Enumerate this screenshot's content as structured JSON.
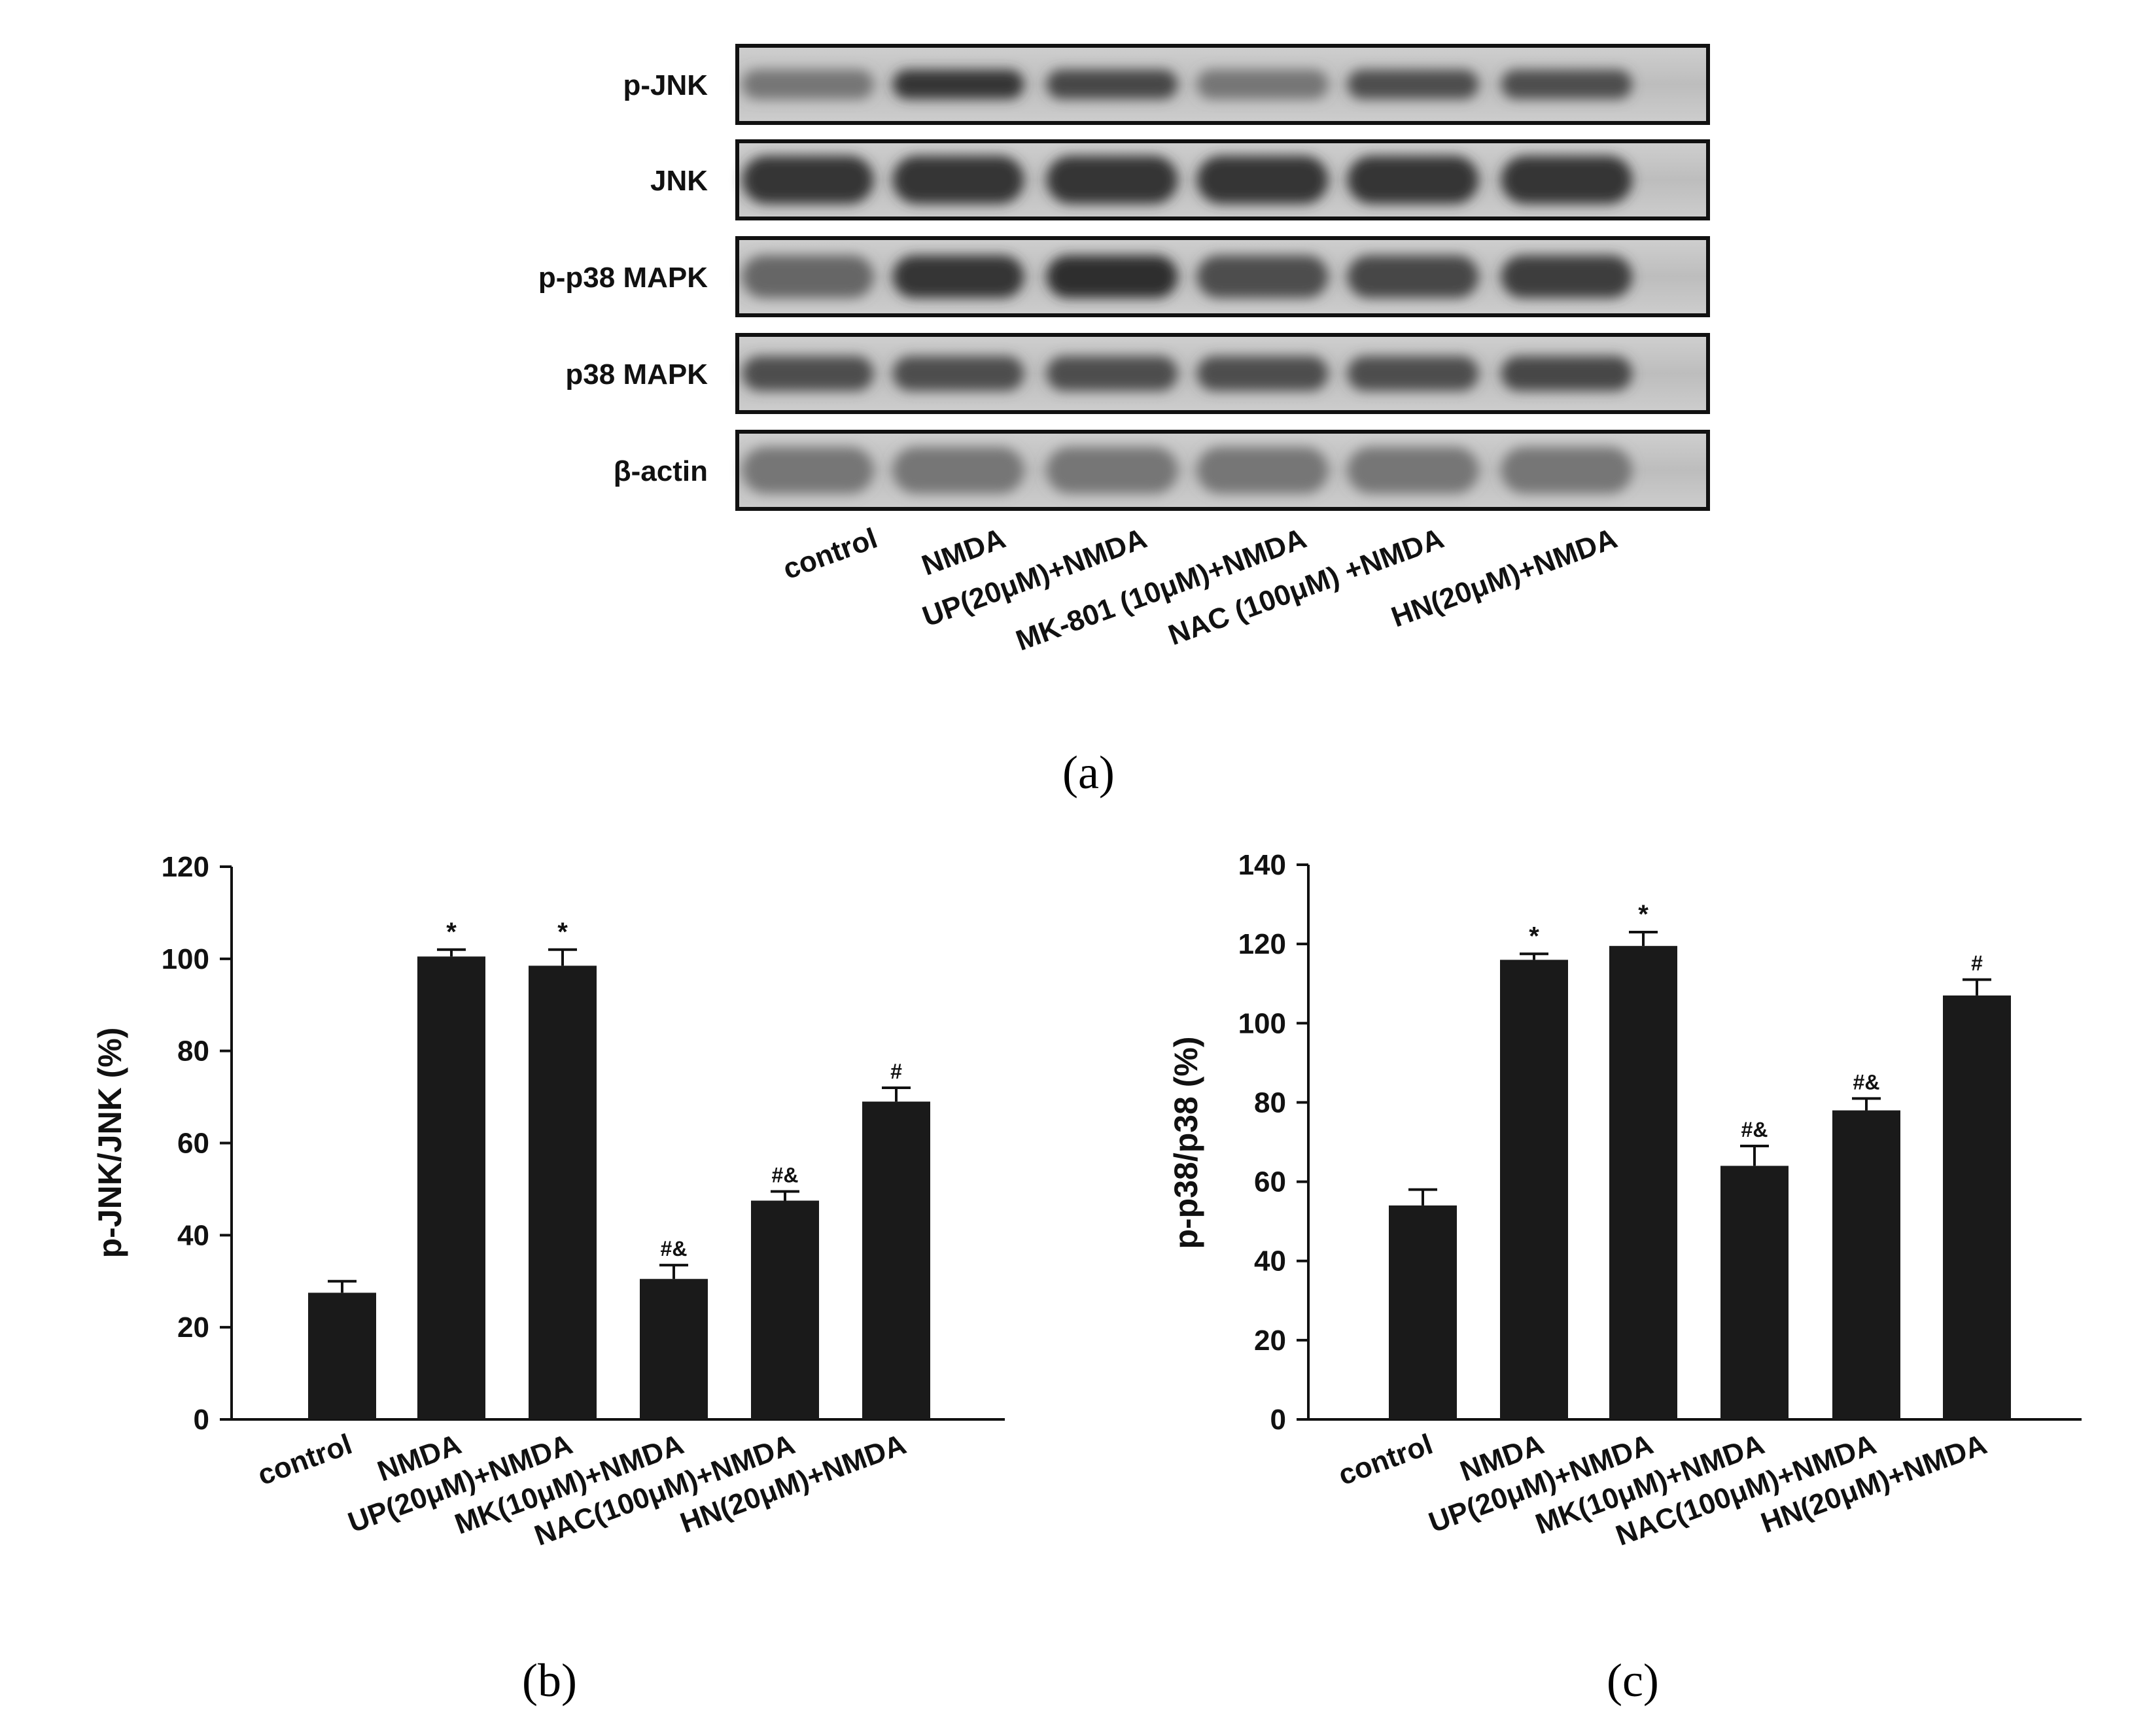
{
  "blot": {
    "row_labels": [
      "p-JNK",
      "JNK",
      "p-p38 MAPK",
      "p38 MAPK",
      "β-actin"
    ],
    "lane_labels": [
      "control",
      "NMDA",
      "UP(20μM)+NMDA",
      "MK-801 (10μM)+NMDA",
      "NAC (100μM) +NMDA",
      "HN(20μM)+NMDA"
    ],
    "panel_label": "(a)"
  },
  "chart_data": [
    {
      "type": "bar",
      "panel_label": "(b)",
      "ylabel": "p-JNK/JNK (%)",
      "xlabel": "",
      "categories": [
        "control",
        "NMDA",
        "UP(20μM)+NMDA",
        "MK(10μM)+NMDA",
        "NAC(100μM)+NMDA",
        "HN(20μM)+NMDA"
      ],
      "values": [
        27.5,
        100.5,
        98.5,
        30.5,
        47.5,
        69
      ],
      "errors": [
        2.5,
        1.5,
        3.5,
        3,
        2,
        3
      ],
      "annotations": [
        "",
        "*",
        "*",
        "#&",
        "#&",
        "#"
      ],
      "ylim": [
        0,
        120
      ],
      "yticks": [
        0,
        20,
        40,
        60,
        80,
        100,
        120
      ],
      "bar_color": "#1a1a1a",
      "grid": false
    },
    {
      "type": "bar",
      "panel_label": "(c)",
      "ylabel": "p-p38/p38 (%)",
      "xlabel": "",
      "categories": [
        "control",
        "NMDA",
        "UP(20μM)+NMDA",
        "MK(10μM)+NMDA",
        "NAC(100μM)+NMDA",
        "HN(20μM)+NMDA"
      ],
      "values": [
        54,
        116,
        119.5,
        64,
        78,
        107
      ],
      "errors": [
        4,
        1.5,
        3.5,
        5,
        3,
        4
      ],
      "annotations": [
        "",
        "*",
        "*",
        "#&",
        "#&",
        "#"
      ],
      "ylim": [
        0,
        140
      ],
      "yticks": [
        0,
        20,
        40,
        60,
        80,
        100,
        120,
        140
      ],
      "bar_color": "#1a1a1a",
      "grid": false
    }
  ]
}
